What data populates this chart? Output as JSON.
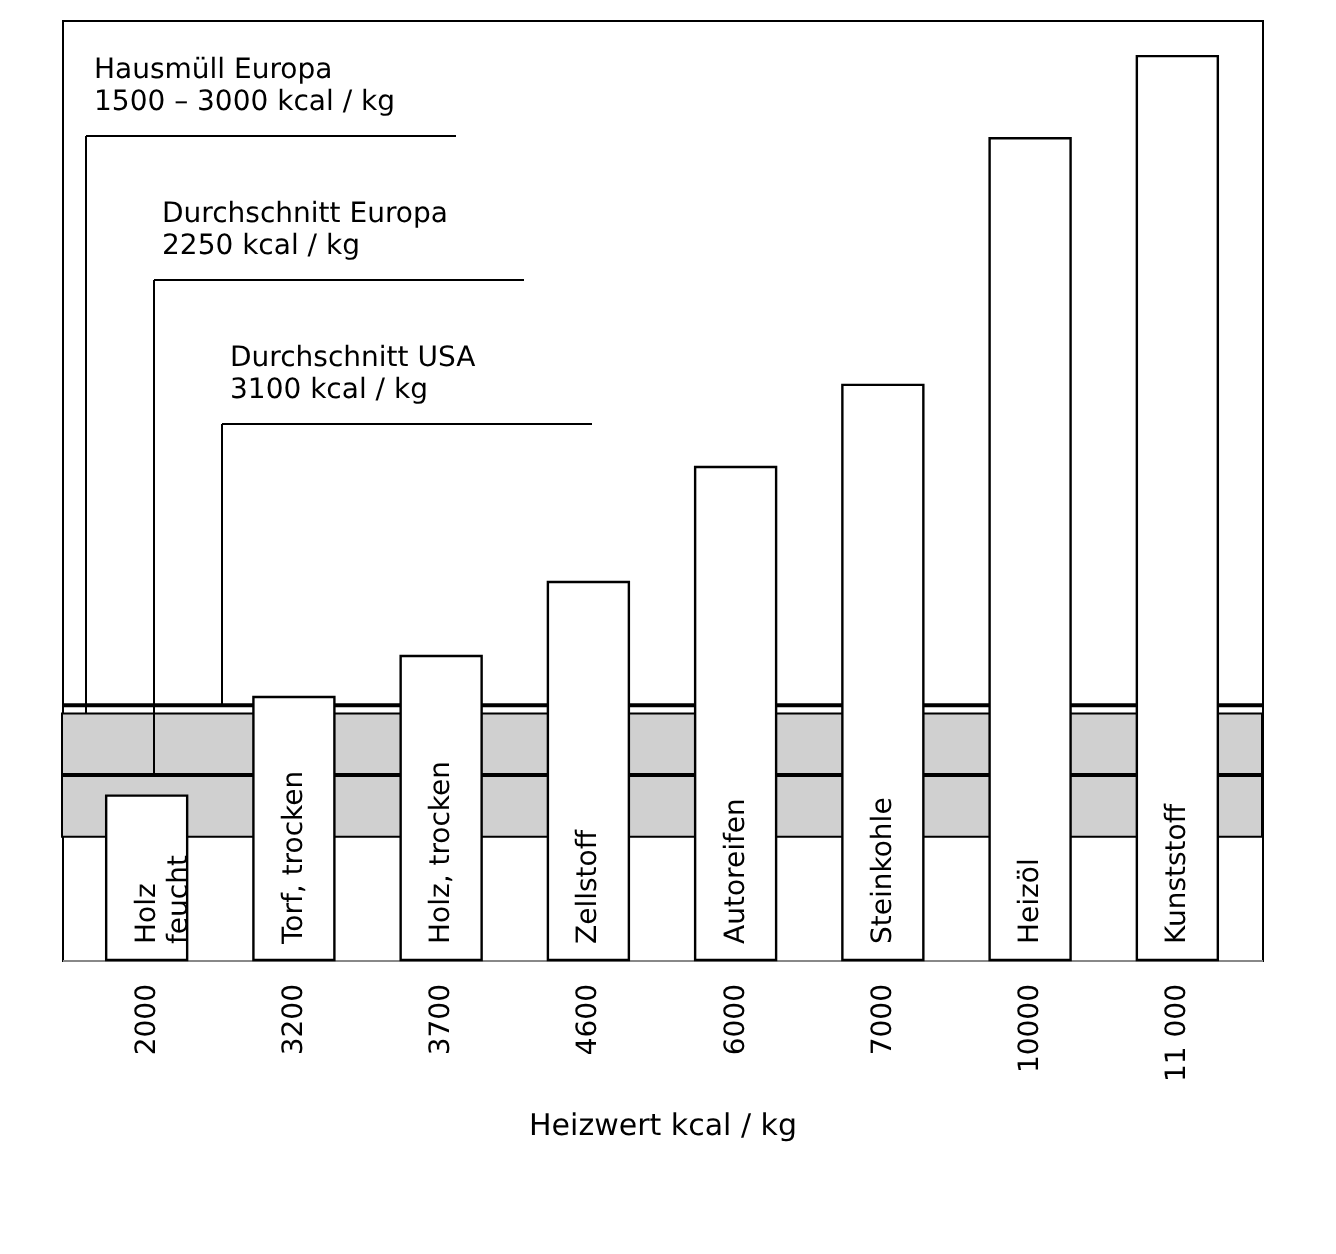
{
  "chart_data": {
    "type": "bar",
    "xlabel": "Heizwert  kcal / kg",
    "categories": [
      "Holz\nfeucht",
      "Torf, trocken",
      "Holz, trocken",
      "Zellstoff",
      "Autoreifen",
      "Steinkohle",
      "Heizöl",
      "Kunststoff"
    ],
    "values": [
      2000,
      3200,
      3700,
      4600,
      6000,
      7000,
      10000,
      11000
    ],
    "value_labels": [
      "2000",
      "3200",
      "3700",
      "4600",
      "6000",
      "7000",
      "10000",
      "11 000"
    ],
    "color": "#ffffff",
    "bands": [
      {
        "axis": "y",
        "from": 1500,
        "to": 3000,
        "label": "Hausmüll Europa\n1500 – 3000 kcal / kg",
        "color": "#d0d0d0"
      }
    ],
    "ref_lines": [
      {
        "axis": "y",
        "value": 2250,
        "label": "Durchschnitt  Europa\n2250 kcal / kg",
        "color": "#000000"
      },
      {
        "axis": "y",
        "value": 3100,
        "label": "Durchschnitt  USA\n3100 kcal / kg",
        "color": "#000000"
      }
    ],
    "grid": false
  }
}
